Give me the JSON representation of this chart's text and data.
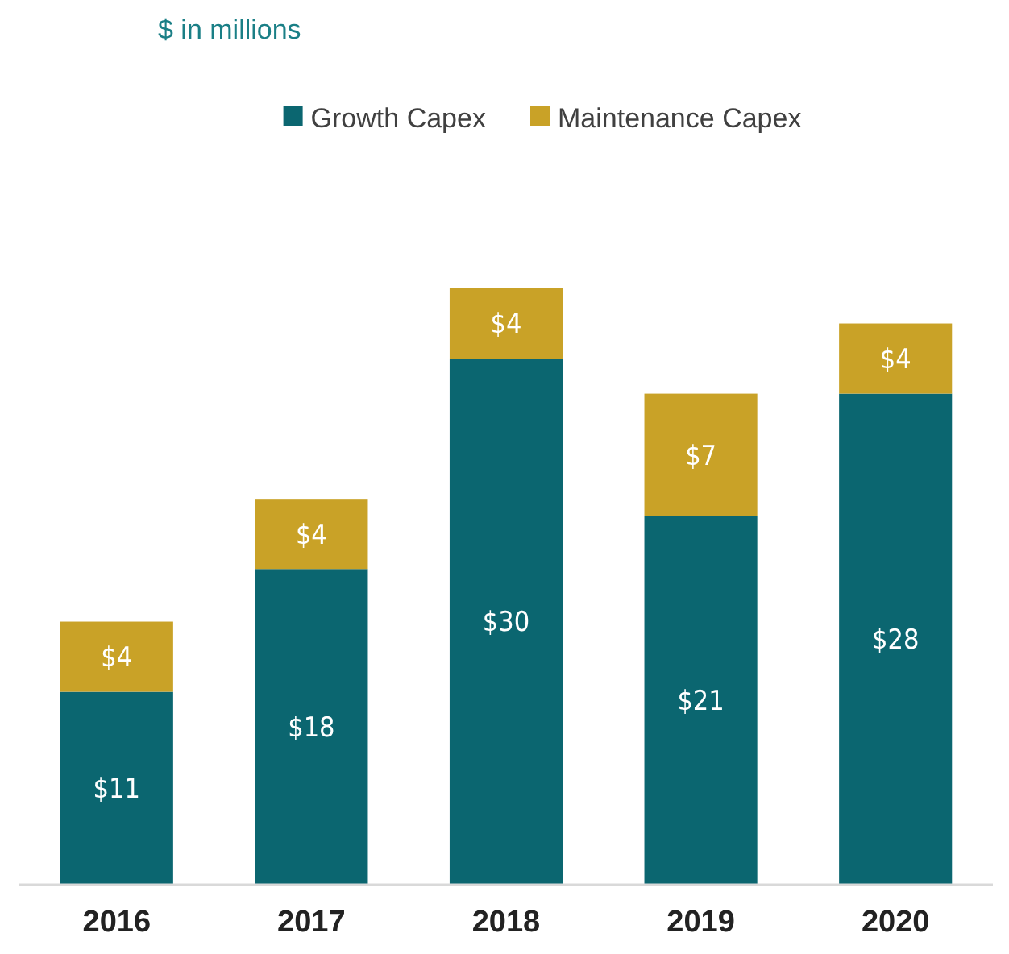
{
  "chart_data": {
    "type": "bar",
    "title": "$ in millions",
    "stacked": true,
    "legend": "top",
    "categories": [
      "2016",
      "2017",
      "2018",
      "2019",
      "2020"
    ],
    "series": [
      {
        "name": "Growth Capex",
        "color": "#0b6670",
        "values": [
          11,
          18,
          30,
          21,
          28
        ],
        "value_labels": [
          "$11",
          "$18",
          "$30",
          "$21",
          "$28"
        ]
      },
      {
        "name": "Maintenance Capex",
        "color": "#c9a227",
        "values": [
          4,
          4,
          4,
          7,
          4
        ],
        "value_labels": [
          "$4",
          "$4",
          "$4",
          "$7",
          "$4"
        ]
      }
    ]
  }
}
